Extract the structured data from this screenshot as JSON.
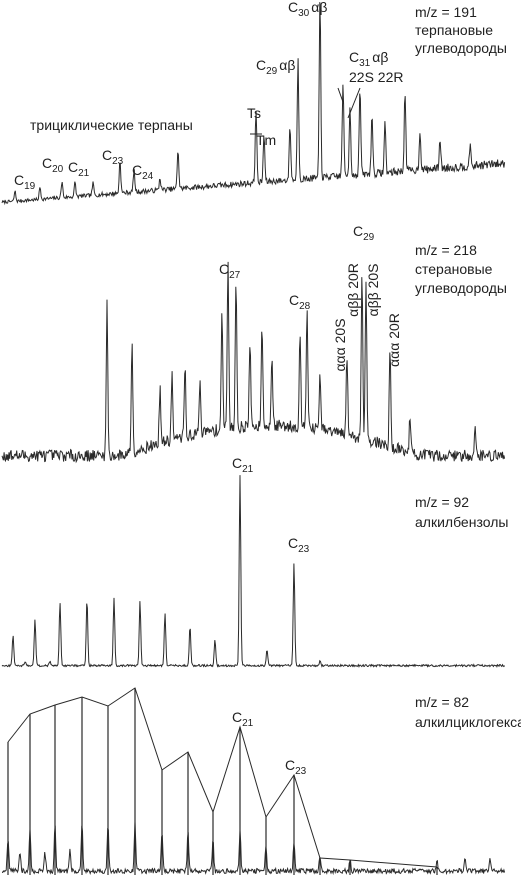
{
  "panels": [
    {
      "ion": "m/z = 191",
      "class_lines": [
        "терпановые",
        "углеводороды"
      ],
      "group_label": "трициклические терпаны",
      "labels": [
        {
          "main": "C",
          "sub": "19"
        },
        {
          "main": "C",
          "sub": "20"
        },
        {
          "main": "C",
          "sub": "21"
        },
        {
          "main": "C",
          "sub": "23"
        },
        {
          "main": "C",
          "sub": "24"
        },
        {
          "main": "Ts"
        },
        {
          "main": "Tm"
        },
        {
          "main": "C",
          "sub": "29",
          "suffix": "αβ"
        },
        {
          "main": "C",
          "sub": "30",
          "suffix": "αβ"
        },
        {
          "main": "C",
          "sub": "31",
          "suffix": "αβ"
        },
        {
          "main": "22S 22R"
        }
      ]
    },
    {
      "ion": "m/z = 218",
      "class_lines": [
        "стерановые",
        "углеводороды"
      ],
      "labels": [
        {
          "main": "C",
          "sub": "27"
        },
        {
          "main": "C",
          "sub": "28"
        },
        {
          "main": "C",
          "sub": "29"
        },
        {
          "main": "ααα 20S"
        },
        {
          "main": "αββ 20R"
        },
        {
          "main": "αββ 20S"
        },
        {
          "main": "ααα 20R"
        }
      ]
    },
    {
      "ion": "m/z = 92",
      "class_lines": [
        "алкилбензолы"
      ],
      "labels": [
        {
          "main": "C",
          "sub": "21"
        },
        {
          "main": "C",
          "sub": "23"
        }
      ]
    },
    {
      "ion": "m/z = 82",
      "class_lines": [
        "алкилциклогексаны"
      ],
      "labels": [
        {
          "main": "C",
          "sub": "21"
        },
        {
          "main": "C",
          "sub": "23"
        }
      ]
    }
  ]
}
